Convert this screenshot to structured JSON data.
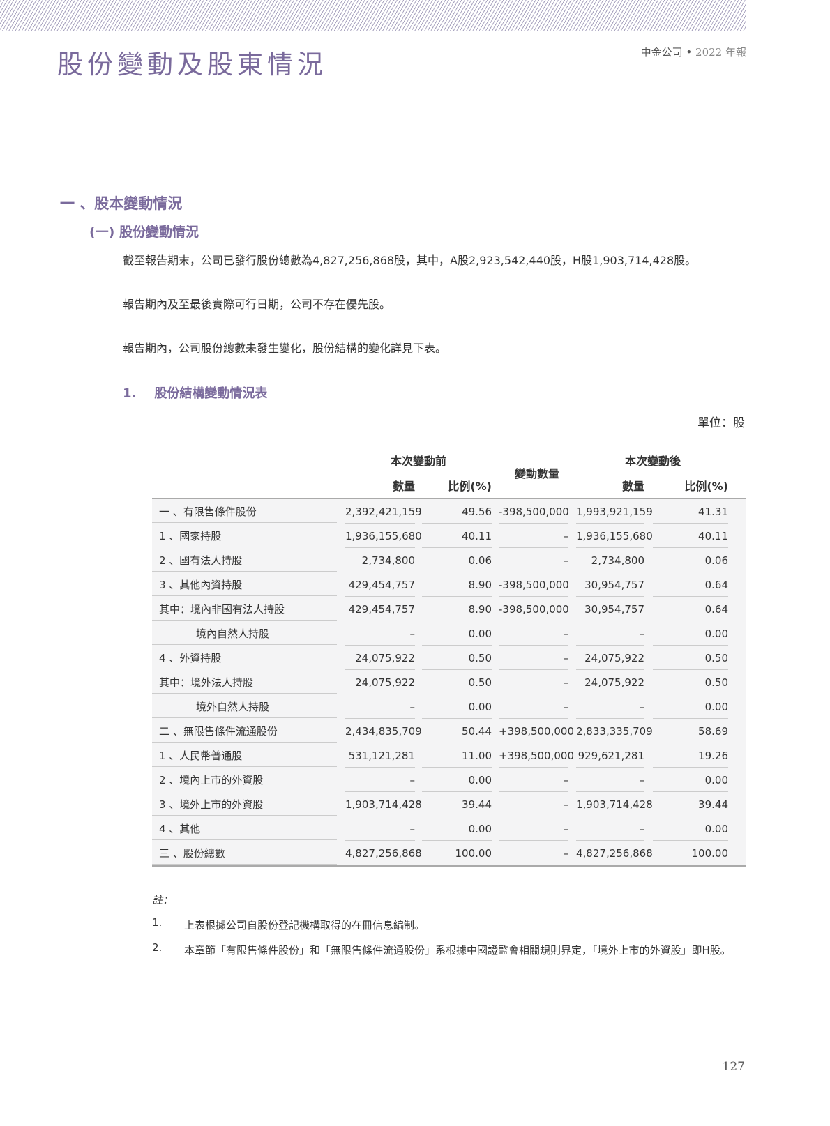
{
  "header": {
    "title": "股份變動及股東情況",
    "company": "中金公司",
    "separator": "•",
    "report": "2022 年報"
  },
  "section1": "一 、股本變動情況",
  "subsection": "(一) 股份變動情況",
  "paragraphs": [
    "截至報告期末，公司已發行股份總數為4,827,256,868股，其中，A股2,923,542,440股，H股1,903,714,428股。",
    "報告期內及至最後實際可行日期，公司不存在優先股。",
    "報告期內，公司股份總數未發生變化，股份結構的變化詳見下表。"
  ],
  "table_heading": {
    "num": "1.",
    "title": "股份結構變動情況表"
  },
  "unit": "單位：股",
  "table": {
    "group_before": "本次變動前",
    "group_change": "變動數量",
    "group_after": "本次變動後",
    "col_qty": "數量",
    "col_pct": "比例(%)",
    "rows": [
      {
        "label": "一 、有限售條件股份",
        "indent": false,
        "v": [
          "2,392,421,159",
          "49.56",
          "-398,500,000",
          "1,993,921,159",
          "41.31"
        ]
      },
      {
        "label": "1 、國家持股",
        "indent": false,
        "v": [
          "1,936,155,680",
          "40.11",
          "–",
          "1,936,155,680",
          "40.11"
        ]
      },
      {
        "label": "2 、國有法人持股",
        "indent": false,
        "v": [
          "2,734,800",
          "0.06",
          "–",
          "2,734,800",
          "0.06"
        ]
      },
      {
        "label": "3 、其他內資持股",
        "indent": false,
        "v": [
          "429,454,757",
          "8.90",
          "-398,500,000",
          "30,954,757",
          "0.64"
        ]
      },
      {
        "label": "其中：境內非國有法人持股",
        "indent": false,
        "v": [
          "429,454,757",
          "8.90",
          "-398,500,000",
          "30,954,757",
          "0.64"
        ]
      },
      {
        "label": "境內自然人持股",
        "indent": true,
        "v": [
          "–",
          "0.00",
          "–",
          "–",
          "0.00"
        ]
      },
      {
        "label": "4 、外資持股",
        "indent": false,
        "v": [
          "24,075,922",
          "0.50",
          "–",
          "24,075,922",
          "0.50"
        ]
      },
      {
        "label": "其中：境外法人持股",
        "indent": false,
        "v": [
          "24,075,922",
          "0.50",
          "–",
          "24,075,922",
          "0.50"
        ]
      },
      {
        "label": "境外自然人持股",
        "indent": true,
        "v": [
          "–",
          "0.00",
          "–",
          "–",
          "0.00"
        ]
      },
      {
        "label": "二 、無限售條件流通股份",
        "indent": false,
        "v": [
          "2,434,835,709",
          "50.44",
          "+398,500,000",
          "2,833,335,709",
          "58.69"
        ]
      },
      {
        "label": "1 、人民幣普通股",
        "indent": false,
        "v": [
          "531,121,281",
          "11.00",
          "+398,500,000",
          "929,621,281",
          "19.26"
        ]
      },
      {
        "label": "2 、境內上市的外資股",
        "indent": false,
        "v": [
          "–",
          "0.00",
          "–",
          "–",
          "0.00"
        ]
      },
      {
        "label": "3 、境外上市的外資股",
        "indent": false,
        "v": [
          "1,903,714,428",
          "39.44",
          "–",
          "1,903,714,428",
          "39.44"
        ]
      },
      {
        "label": "4 、其他",
        "indent": false,
        "v": [
          "–",
          "0.00",
          "–",
          "–",
          "0.00"
        ]
      },
      {
        "label": "三 、股份總數",
        "indent": false,
        "v": [
          "4,827,256,868",
          "100.00",
          "–",
          "4,827,256,868",
          "100.00"
        ]
      }
    ]
  },
  "notes": {
    "title": "註：",
    "items": [
      {
        "n": "1.",
        "t": "上表根據公司自股份登記機構取得的在冊信息編制。"
      },
      {
        "n": "2.",
        "t": "本章節「有限售條件股份」和「無限售條件流通股份」系根據中國證監會相關規則界定，「境外上市的外資股」即H股。"
      }
    ]
  },
  "page_number": "127"
}
